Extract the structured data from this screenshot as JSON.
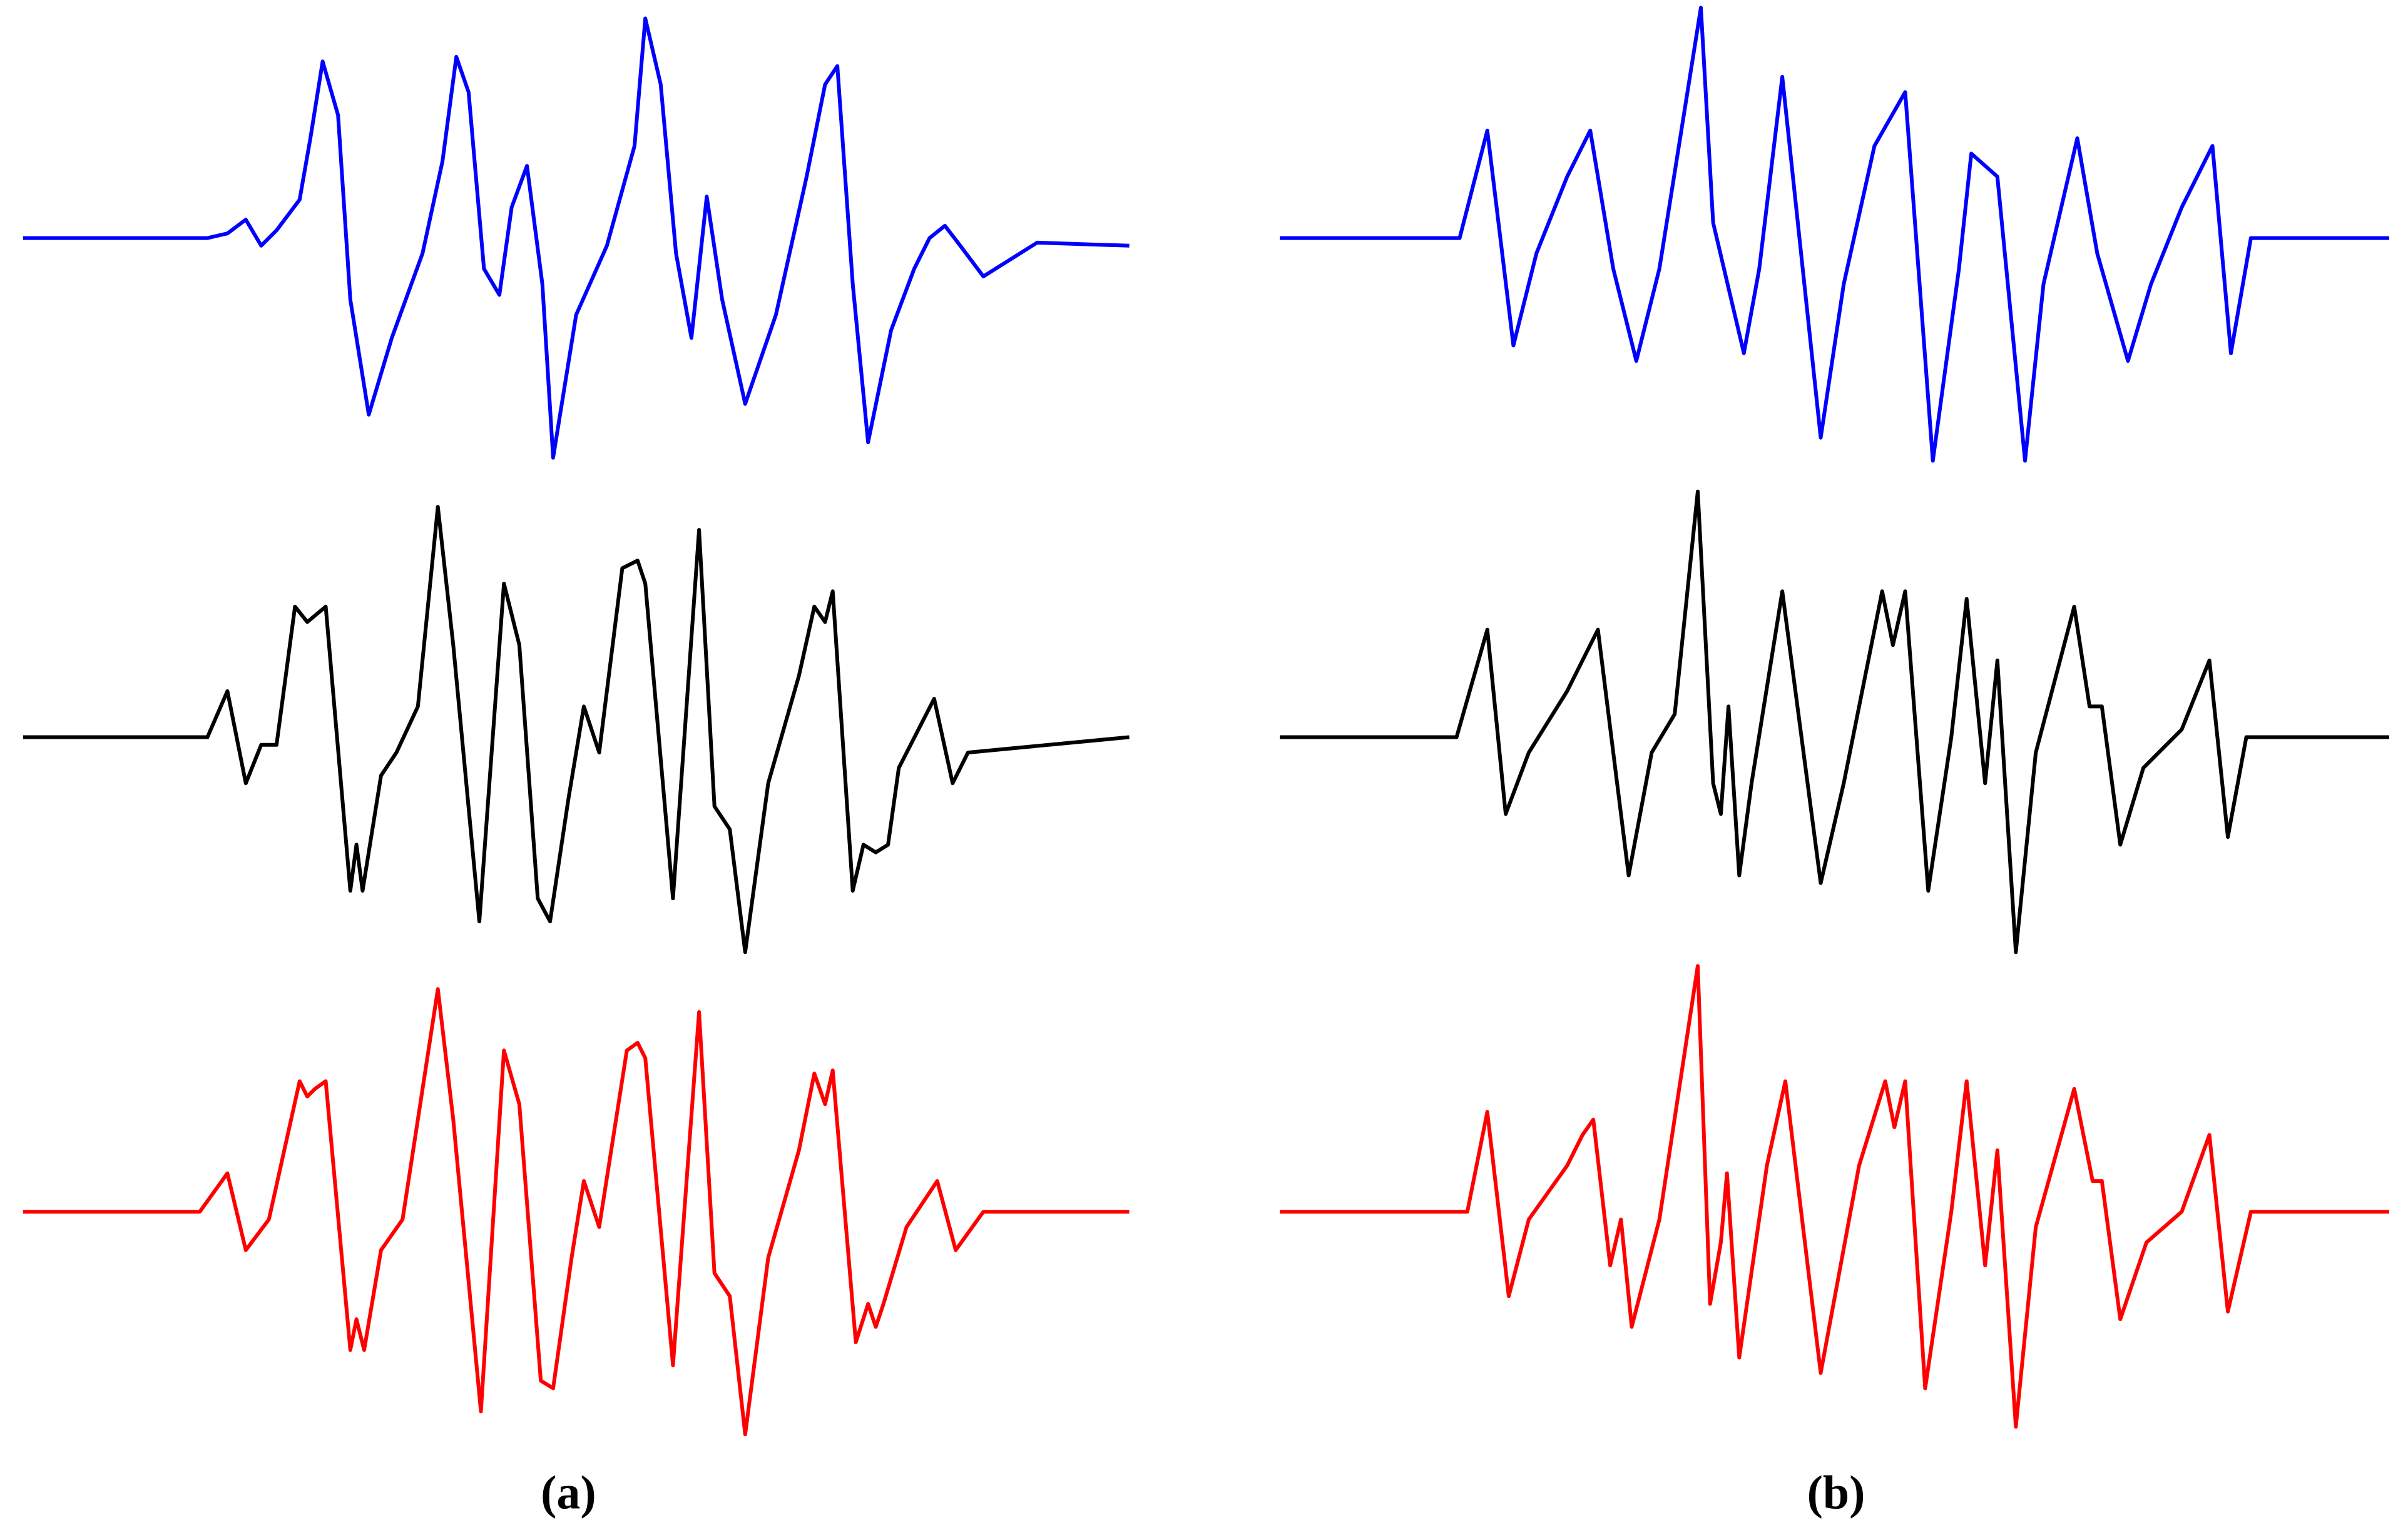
{
  "chart_data": [
    {
      "type": "line",
      "label": "(a)",
      "series": [
        {
          "color": "#0000ff",
          "x": [
            0,
            120,
            133,
            145,
            155,
            165,
            180,
            187,
            195,
            205,
            213,
            225,
            240,
            260,
            273,
            282,
            290,
            300,
            310,
            318,
            328,
            338,
            345,
            360,
            380,
            398,
            405,
            415,
            425,
            435,
            445,
            455,
            470,
            490,
            510,
            522,
            530,
            540,
            550,
            565,
            580,
            590,
            600,
            610,
            625,
            660,
            720
          ],
          "values": [
            0,
            0,
            3,
            12,
            -5,
            5,
            25,
            65,
            115,
            80,
            -40,
            -115,
            -65,
            -10,
            50,
            118,
            95,
            -20,
            -37,
            20,
            47,
            -30,
            -143,
            -50,
            -5,
            60,
            143,
            100,
            -10,
            -65,
            27,
            -40,
            -108,
            -50,
            40,
            100,
            112,
            -30,
            -133,
            -60,
            -20,
            0,
            8,
            -5,
            -25,
            -3,
            -5
          ]
        },
        {
          "color": "#000000",
          "x": [
            0,
            120,
            133,
            145,
            155,
            165,
            177,
            185,
            197,
            213,
            217,
            221,
            233,
            243,
            257,
            270,
            280,
            297,
            313,
            323,
            335,
            343,
            355,
            365,
            375,
            390,
            400,
            405,
            423,
            440,
            450,
            460,
            470,
            485,
            505,
            515,
            522,
            527,
            540,
            547,
            555,
            563,
            570,
            593,
            605,
            615,
            720
          ],
          "values": [
            0,
            0,
            30,
            -30,
            -5,
            -5,
            85,
            75,
            85,
            -100,
            -70,
            -100,
            -25,
            -10,
            20,
            150,
            60,
            -120,
            100,
            60,
            -105,
            -120,
            -40,
            20,
            -10,
            110,
            115,
            100,
            -105,
            135,
            -45,
            -60,
            -140,
            -30,
            40,
            85,
            75,
            95,
            -100,
            -70,
            -75,
            -70,
            -20,
            25,
            -30,
            -10,
            0
          ]
        },
        {
          "color": "#ff0000",
          "x": [
            0,
            115,
            133,
            145,
            160,
            180,
            185,
            190,
            197,
            213,
            217,
            222,
            233,
            247,
            270,
            280,
            298,
            313,
            323,
            337,
            345,
            357,
            365,
            375,
            393,
            400,
            405,
            423,
            440,
            450,
            460,
            470,
            485,
            505,
            515,
            522,
            527,
            542,
            550,
            555,
            560,
            575,
            595,
            607,
            625,
            720
          ],
          "values": [
            0,
            0,
            25,
            -25,
            -5,
            85,
            75,
            80,
            85,
            -90,
            -70,
            -90,
            -25,
            -5,
            145,
            60,
            -130,
            105,
            70,
            -110,
            -115,
            -30,
            20,
            -10,
            105,
            110,
            100,
            -100,
            130,
            -40,
            -55,
            -145,
            -30,
            40,
            90,
            70,
            92,
            -85,
            -60,
            -75,
            -60,
            -10,
            20,
            -25,
            0,
            0
          ]
        }
      ]
    },
    {
      "type": "line",
      "label": "(b)",
      "series": [
        {
          "color": "#0000ff",
          "x": [
            0,
            117,
            135,
            152,
            167,
            187,
            202,
            217,
            232,
            247,
            274,
            282,
            302,
            312,
            327,
            352,
            367,
            387,
            407,
            425,
            442,
            450,
            467,
            485,
            497,
            519,
            532,
            552,
            567,
            587,
            607,
            619,
            632,
            722
          ],
          "values": [
            0,
            0,
            70,
            -70,
            -10,
            40,
            70,
            -20,
            -80,
            -20,
            150,
            10,
            -75,
            -20,
            105,
            -130,
            -30,
            60,
            95,
            -145,
            -20,
            55,
            40,
            -145,
            -30,
            65,
            -10,
            -80,
            -30,
            20,
            60,
            -75,
            0,
            0
          ]
        },
        {
          "color": "#000000",
          "x": [
            0,
            115,
            135,
            147,
            162,
            187,
            207,
            217,
            227,
            242,
            257,
            272,
            282,
            287,
            292,
            299,
            307,
            327,
            352,
            367,
            392,
            399,
            407,
            422,
            437,
            447,
            459,
            467,
            479,
            492,
            517,
            527,
            535,
            547,
            562,
            587,
            605,
            617,
            629,
            722
          ],
          "values": [
            0,
            0,
            70,
            -50,
            -10,
            30,
            70,
            -10,
            -90,
            -10,
            15,
            160,
            -30,
            -50,
            20,
            -90,
            -30,
            95,
            -95,
            -30,
            95,
            60,
            95,
            -100,
            0,
            90,
            -30,
            50,
            -140,
            -10,
            85,
            20,
            20,
            -70,
            -20,
            5,
            50,
            -65,
            0,
            0
          ]
        },
        {
          "color": "#ff0000",
          "x": [
            0,
            122,
            135,
            149,
            162,
            187,
            197,
            204,
            215,
            222,
            229,
            247,
            272,
            280,
            287,
            291,
            299,
            317,
            329,
            352,
            377,
            394,
            400,
            407,
            420,
            437,
            447,
            459,
            467,
            479,
            492,
            517,
            529,
            535,
            547,
            564,
            587,
            605,
            617,
            632,
            722
          ],
          "values": [
            0,
            0,
            65,
            -55,
            -5,
            30,
            50,
            60,
            -35,
            -5,
            -75,
            -5,
            160,
            -60,
            -20,
            25,
            -95,
            30,
            85,
            -105,
            30,
            85,
            55,
            85,
            -115,
            0,
            85,
            -35,
            40,
            -140,
            -10,
            80,
            20,
            20,
            -70,
            -20,
            0,
            50,
            -65,
            0,
            0
          ]
        }
      ]
    }
  ]
}
